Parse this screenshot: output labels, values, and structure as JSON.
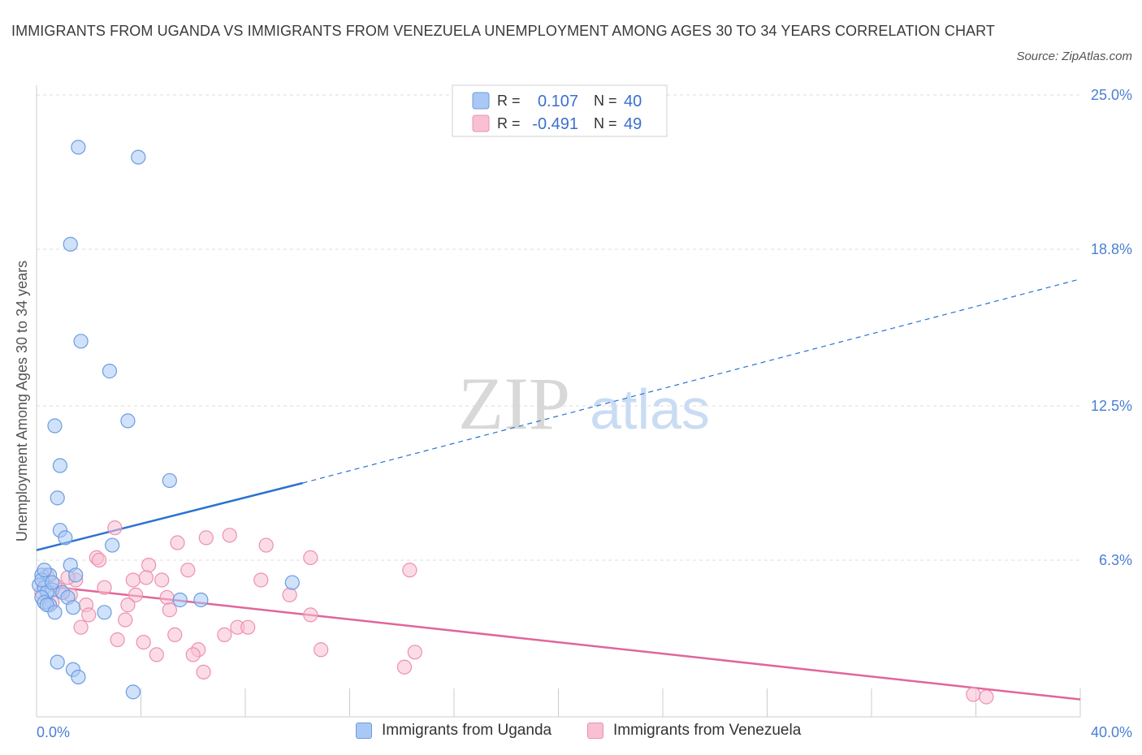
{
  "title": "IMMIGRANTS FROM UGANDA VS IMMIGRANTS FROM VENEZUELA UNEMPLOYMENT AMONG AGES 30 TO 34 YEARS CORRELATION CHART",
  "source": "Source: ZipAtlas.com",
  "watermark": {
    "zip": "ZIP",
    "atlas": "atlas"
  },
  "colors": {
    "uganda_fill": "#a9c8f5",
    "uganda_stroke": "#6a9de0",
    "uganda_line": "#2b72d1",
    "venezuela_fill": "#f8c0d2",
    "venezuela_stroke": "#ee8fb0",
    "venezuela_line": "#e0669a",
    "axis_text": "#4a7fd4"
  },
  "legend": {
    "r_label": "R =",
    "n_label": "N =",
    "uganda": {
      "r": "0.107",
      "n": "40"
    },
    "venezuela": {
      "r": "-0.491",
      "n": "49"
    }
  },
  "bottom_legend": {
    "uganda": "Immigrants from Uganda",
    "venezuela": "Immigrants from Venezuela"
  },
  "chart_data": {
    "type": "scatter",
    "title": "IMMIGRANTS FROM UGANDA VS IMMIGRANTS FROM VENEZUELA UNEMPLOYMENT AMONG AGES 30 TO 34 YEARS CORRELATION CHART",
    "xlabel": "",
    "ylabel": "Unemployment Among Ages 30 to 34 years",
    "xlim": [
      0,
      40
    ],
    "ylim": [
      0,
      25
    ],
    "x_tick_labels": [
      "0.0%",
      "40.0%"
    ],
    "y_ticks": [
      6.3,
      12.5,
      18.8,
      25.0
    ],
    "y_tick_labels": [
      "6.3%",
      "12.5%",
      "18.8%",
      "25.0%"
    ],
    "grid": true,
    "series": [
      {
        "name": "Immigrants from Uganda",
        "r": 0.107,
        "n": 40,
        "trend": {
          "x0": 0,
          "y0": 6.7,
          "x_solid_end": 10.2,
          "y_solid_end": 9.4,
          "x1": 40,
          "y1": 17.6
        },
        "points": [
          [
            1.6,
            22.9
          ],
          [
            3.9,
            22.5
          ],
          [
            1.3,
            19.0
          ],
          [
            1.7,
            15.1
          ],
          [
            2.8,
            13.9
          ],
          [
            0.7,
            11.7
          ],
          [
            3.5,
            11.9
          ],
          [
            0.9,
            10.1
          ],
          [
            0.8,
            8.8
          ],
          [
            5.1,
            9.5
          ],
          [
            0.9,
            7.5
          ],
          [
            1.1,
            7.2
          ],
          [
            2.9,
            6.9
          ],
          [
            1.3,
            6.1
          ],
          [
            0.2,
            5.7
          ],
          [
            0.5,
            5.7
          ],
          [
            1.5,
            5.7
          ],
          [
            0.1,
            5.3
          ],
          [
            0.3,
            5.2
          ],
          [
            0.6,
            5.1
          ],
          [
            0.4,
            5.0
          ],
          [
            1.0,
            5.0
          ],
          [
            0.2,
            4.8
          ],
          [
            1.2,
            4.8
          ],
          [
            0.3,
            4.6
          ],
          [
            0.5,
            4.5
          ],
          [
            0.4,
            4.5
          ],
          [
            1.4,
            4.4
          ],
          [
            0.7,
            4.2
          ],
          [
            2.6,
            4.2
          ],
          [
            5.5,
            4.7
          ],
          [
            6.3,
            4.7
          ],
          [
            9.8,
            5.4
          ],
          [
            0.8,
            2.2
          ],
          [
            1.4,
            1.9
          ],
          [
            1.6,
            1.6
          ],
          [
            3.7,
            1.0
          ],
          [
            0.2,
            5.5
          ],
          [
            0.6,
            5.4
          ],
          [
            0.3,
            5.9
          ]
        ]
      },
      {
        "name": "Immigrants from Venezuela",
        "r": -0.491,
        "n": 49,
        "trend": {
          "x0": 0,
          "y0": 5.3,
          "x1": 40,
          "y1": 0.7
        },
        "points": [
          [
            3.0,
            7.6
          ],
          [
            2.3,
            6.4
          ],
          [
            2.4,
            6.3
          ],
          [
            4.3,
            6.1
          ],
          [
            5.4,
            7.0
          ],
          [
            6.5,
            7.2
          ],
          [
            7.4,
            7.3
          ],
          [
            8.8,
            6.9
          ],
          [
            10.5,
            6.4
          ],
          [
            14.3,
            5.9
          ],
          [
            5.8,
            5.9
          ],
          [
            3.7,
            5.5
          ],
          [
            4.2,
            5.6
          ],
          [
            4.8,
            5.5
          ],
          [
            8.6,
            5.5
          ],
          [
            1.5,
            5.5
          ],
          [
            2.6,
            5.2
          ],
          [
            0.9,
            5.1
          ],
          [
            3.8,
            4.9
          ],
          [
            5.0,
            4.8
          ],
          [
            9.7,
            4.9
          ],
          [
            0.6,
            4.6
          ],
          [
            1.9,
            4.5
          ],
          [
            3.5,
            4.5
          ],
          [
            5.1,
            4.3
          ],
          [
            2.0,
            4.1
          ],
          [
            3.4,
            3.9
          ],
          [
            10.5,
            4.1
          ],
          [
            1.7,
            3.6
          ],
          [
            7.7,
            3.6
          ],
          [
            8.1,
            3.6
          ],
          [
            5.3,
            3.3
          ],
          [
            7.2,
            3.3
          ],
          [
            3.1,
            3.1
          ],
          [
            4.1,
            3.0
          ],
          [
            6.2,
            2.7
          ],
          [
            10.9,
            2.7
          ],
          [
            14.5,
            2.6
          ],
          [
            6.0,
            2.5
          ],
          [
            4.6,
            2.5
          ],
          [
            14.1,
            2.0
          ],
          [
            6.4,
            1.8
          ],
          [
            35.9,
            0.9
          ],
          [
            36.4,
            0.8
          ],
          [
            0.4,
            5.7
          ],
          [
            0.7,
            5.3
          ],
          [
            1.3,
            4.9
          ],
          [
            0.2,
            5.0
          ],
          [
            1.2,
            5.6
          ]
        ]
      }
    ]
  }
}
